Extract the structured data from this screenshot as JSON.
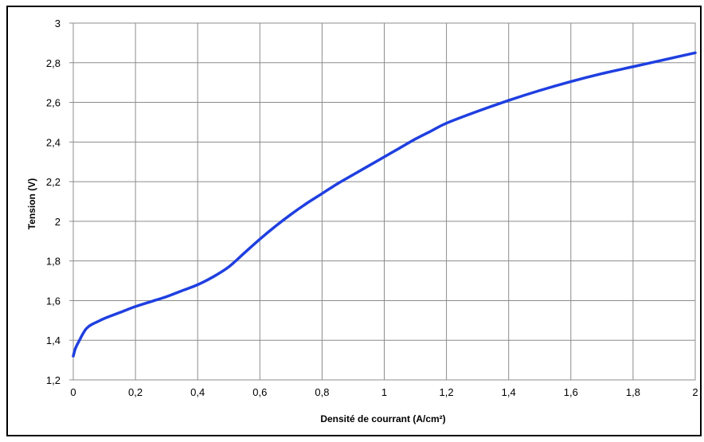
{
  "chart_data": {
    "type": "line",
    "title": "",
    "xlabel": "Densité de courrant (A/cm²)",
    "ylabel": "Tension (V)",
    "xlim": [
      0,
      2
    ],
    "ylim": [
      1.2,
      3
    ],
    "x_ticks": [
      {
        "value": 0,
        "label": "0"
      },
      {
        "value": 0.2,
        "label": "0,2"
      },
      {
        "value": 0.4,
        "label": "0,4"
      },
      {
        "value": 0.6,
        "label": "0,6"
      },
      {
        "value": 0.8,
        "label": "0,8"
      },
      {
        "value": 1,
        "label": "1"
      },
      {
        "value": 1.2,
        "label": "1,2"
      },
      {
        "value": 1.4,
        "label": "1,4"
      },
      {
        "value": 1.6,
        "label": "1,6"
      },
      {
        "value": 1.8,
        "label": "1,8"
      },
      {
        "value": 2,
        "label": "2"
      }
    ],
    "y_ticks": [
      {
        "value": 1.2,
        "label": "1,2"
      },
      {
        "value": 1.4,
        "label": "1,4"
      },
      {
        "value": 1.6,
        "label": "1,6"
      },
      {
        "value": 1.8,
        "label": "1,8"
      },
      {
        "value": 2,
        "label": "2"
      },
      {
        "value": 2.2,
        "label": "2,2"
      },
      {
        "value": 2.4,
        "label": "2,4"
      },
      {
        "value": 2.6,
        "label": "2,6"
      },
      {
        "value": 2.8,
        "label": "2,8"
      },
      {
        "value": 3,
        "label": "3"
      }
    ],
    "grid": true,
    "legend": "none",
    "series": [
      {
        "color": "#1f3fe0",
        "x": [
          0,
          0.005,
          0.01,
          0.02,
          0.03,
          0.04,
          0.05,
          0.06,
          0.08,
          0.1,
          0.15,
          0.2,
          0.25,
          0.3,
          0.35,
          0.4,
          0.45,
          0.5,
          0.55,
          0.6,
          0.65,
          0.7,
          0.75,
          0.8,
          0.85,
          0.9,
          0.95,
          1.0,
          1.05,
          1.1,
          1.15,
          1.2,
          1.3,
          1.4,
          1.5,
          1.6,
          1.7,
          1.8,
          1.9,
          2.0
        ],
        "y": [
          1.32,
          1.35,
          1.37,
          1.4,
          1.43,
          1.455,
          1.47,
          1.48,
          1.495,
          1.51,
          1.54,
          1.57,
          1.595,
          1.62,
          1.65,
          1.68,
          1.72,
          1.77,
          1.84,
          1.91,
          1.975,
          2.035,
          2.09,
          2.14,
          2.19,
          2.235,
          2.28,
          2.325,
          2.37,
          2.415,
          2.455,
          2.495,
          2.555,
          2.61,
          2.66,
          2.705,
          2.745,
          2.78,
          2.815,
          2.85
        ]
      }
    ]
  }
}
